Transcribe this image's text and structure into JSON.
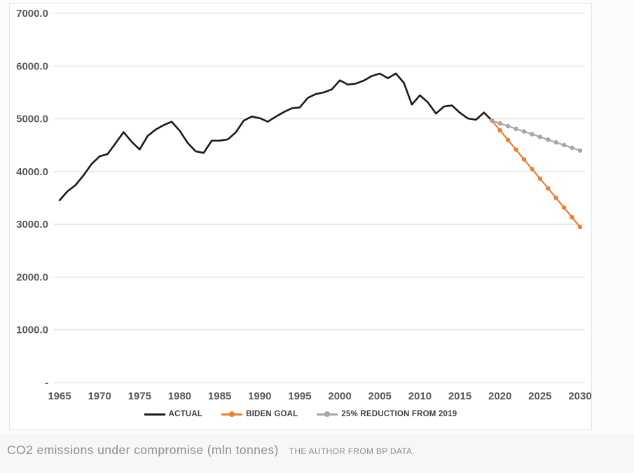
{
  "caption": {
    "title": "CO2 emissions under compromise (mln tonnes)",
    "source": "THE AUTHOR FROM BP DATA."
  },
  "colors": {
    "actual": "#1a1a1a",
    "biden_goal": "#ED7D31",
    "reduction_25": "#A6A6A6",
    "gridline": "#d9d9d9",
    "axis_text": "#595959",
    "panel_bg": "#ffffff"
  },
  "chart_data": {
    "type": "line",
    "title": "",
    "xlabel": "",
    "ylabel": "",
    "ylim": [
      0,
      7000
    ],
    "x_range": [
      1965,
      2030
    ],
    "grid": "horizontal",
    "legend_position": "bottom",
    "y_ticks": [
      {
        "value": 7000,
        "label": "7000.0"
      },
      {
        "value": 6000,
        "label": "6000.0"
      },
      {
        "value": 5000,
        "label": "5000.0"
      },
      {
        "value": 4000,
        "label": "4000.0"
      },
      {
        "value": 3000,
        "label": "3000.0"
      },
      {
        "value": 2000,
        "label": "2000.0"
      },
      {
        "value": 1000,
        "label": "1000.0"
      },
      {
        "value": 0,
        "label": "-"
      }
    ],
    "x_ticks": [
      {
        "value": 1965,
        "label": "1965"
      },
      {
        "value": 1970,
        "label": "1970"
      },
      {
        "value": 1975,
        "label": "1975"
      },
      {
        "value": 1980,
        "label": "1980"
      },
      {
        "value": 1985,
        "label": "1985"
      },
      {
        "value": 1990,
        "label": "1990"
      },
      {
        "value": 1995,
        "label": "1995"
      },
      {
        "value": 2000,
        "label": "2000"
      },
      {
        "value": 2005,
        "label": "2005"
      },
      {
        "value": 2010,
        "label": "2010"
      },
      {
        "value": 2015,
        "label": "2015"
      },
      {
        "value": 2020,
        "label": "2020"
      },
      {
        "value": 2025,
        "label": "2025"
      },
      {
        "value": 2030,
        "label": "2030"
      }
    ],
    "series": [
      {
        "name": "ACTUAL",
        "color": "#1a1a1a",
        "line_width": 2.6,
        "markers": false,
        "x_start": 1965,
        "x_step": 1,
        "values": [
          3455,
          3628,
          3744,
          3930,
          4143,
          4288,
          4332,
          4538,
          4748,
          4566,
          4419,
          4675,
          4796,
          4881,
          4946,
          4776,
          4544,
          4384,
          4354,
          4586,
          4587,
          4609,
          4741,
          4966,
          5043,
          5013,
          4945,
          5041,
          5128,
          5200,
          5216,
          5397,
          5470,
          5501,
          5558,
          5729,
          5650,
          5668,
          5725,
          5812,
          5857,
          5769,
          5860,
          5682,
          5271,
          5446,
          5312,
          5100,
          5233,
          5254,
          5114,
          5006,
          4983,
          5119,
          4965
        ]
      },
      {
        "name": "BIDEN GOAL",
        "color": "#ED7D31",
        "line_width": 2.2,
        "markers": true,
        "x_start": 2019,
        "x_step": 1,
        "values": [
          4965,
          4782,
          4599,
          4416,
          4232,
          4049,
          3866,
          3683,
          3500,
          3316,
          3133,
          2950
        ]
      },
      {
        "name": "25% REDUCTION FROM 2019",
        "color": "#A6A6A6",
        "line_width": 2.2,
        "markers": true,
        "x_start": 2019,
        "x_step": 1,
        "values": [
          4965,
          4914,
          4862,
          4811,
          4760,
          4708,
          4657,
          4606,
          4554,
          4503,
          4451,
          4400
        ]
      }
    ]
  }
}
